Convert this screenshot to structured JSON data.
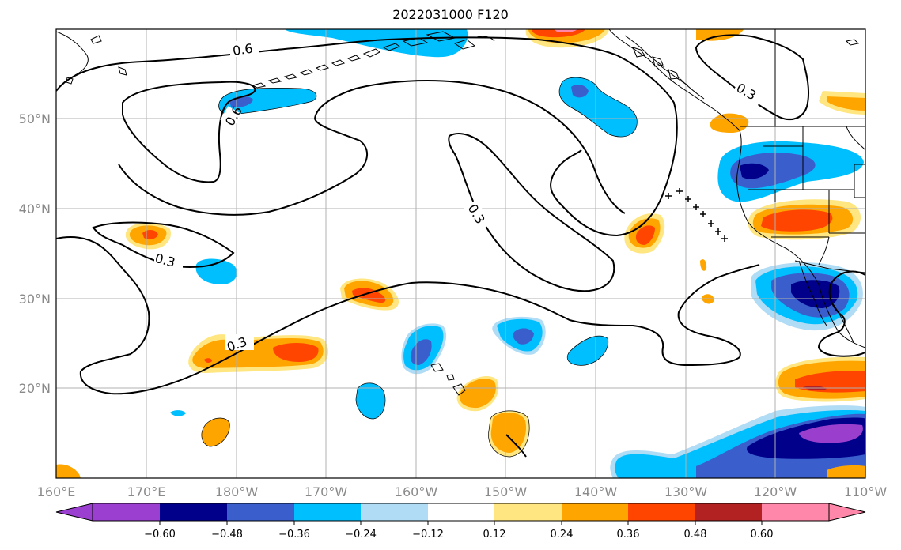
{
  "title": "2022031000 F120",
  "map": {
    "lon_range": [
      160,
      250
    ],
    "lat_range": [
      10,
      60
    ],
    "grid": true,
    "lon_labels": [
      "160°E",
      "170°E",
      "180°W",
      "170°W",
      "160°W",
      "150°W",
      "140°W",
      "130°W",
      "120°W",
      "110°W"
    ],
    "lat_labels": [
      "20°N",
      "30°N",
      "40°N",
      "50°N"
    ],
    "contour_labels": [
      "0.6",
      "0.6",
      "0.3",
      "0.3",
      "0.3",
      "0.3"
    ]
  },
  "colorbar": {
    "tick_labels": [
      "−0.60",
      "−0.48",
      "−0.36",
      "−0.24",
      "−0.12",
      "0.12",
      "0.24",
      "0.36",
      "0.48",
      "0.60"
    ],
    "colors": [
      "#9a3fcf",
      "#00008b",
      "#3a5fcd",
      "#00bfff",
      "#b0dcf5",
      "#ffffff",
      "#ffe680",
      "#ffa500",
      "#ff4500",
      "#b22222",
      "#ff88aa"
    ]
  }
}
